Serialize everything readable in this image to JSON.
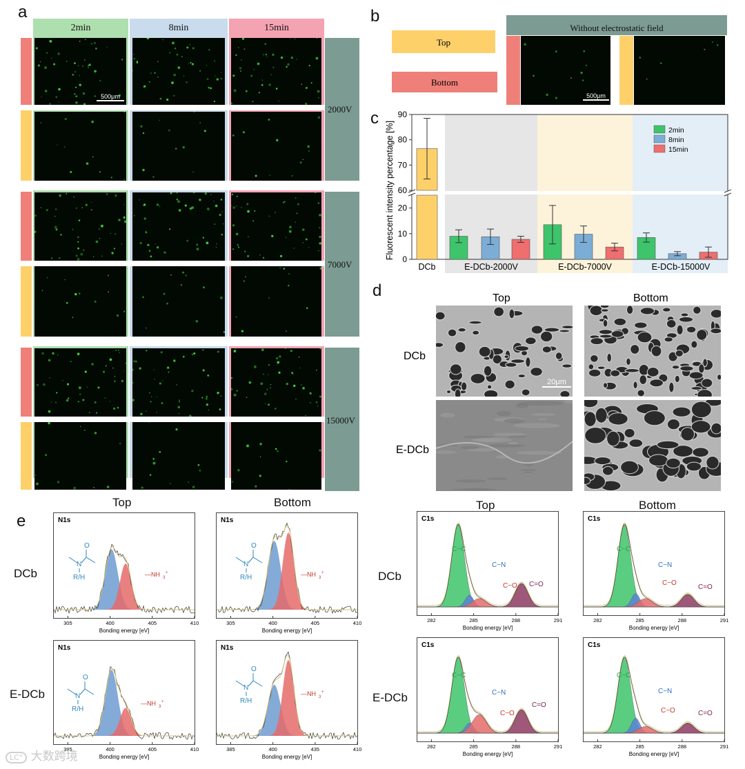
{
  "panel_labels": {
    "a": "a",
    "b": "b",
    "c": "c",
    "d": "d",
    "e": "e"
  },
  "panel_a": {
    "columns": [
      "2min",
      "8min",
      "15min"
    ],
    "voltages": [
      "2000V",
      "7000V",
      "15000V"
    ],
    "scale_bar": "500μm",
    "colors": {
      "col1": "#aedfae",
      "col2": "#c9dced",
      "col3": "#f4a3b3",
      "voltage_band": "#7c9b92",
      "top": "#fdd06a",
      "bottom": "#ee8079"
    }
  },
  "panel_b": {
    "top_label": "Top",
    "bottom_label": "Bottom",
    "header": "Without electrostatic field",
    "scale_bar": "500μm"
  },
  "chart_data": {
    "type": "bar",
    "ylabel": "Fluorescent intensity percentage [%]",
    "ylim_lower": [
      0,
      25
    ],
    "ylim_upper": [
      60,
      90
    ],
    "groups": [
      "DCb",
      "E-DCb-2000V",
      "E-DCb-7000V",
      "E-DCb-15000V"
    ],
    "legend": [
      "2min",
      "8min",
      "15min"
    ],
    "legend_position": "top-right",
    "series_colors": {
      "2min": "#3ec46b",
      "8min": "#7badd6",
      "15min": "#ef6e6e",
      "DCb": "#fdd06a"
    },
    "group_backgrounds": [
      "#ffffff",
      "#e6e6e6",
      "#fdf3da",
      "#e3eef7"
    ],
    "yticks_lower": [
      "0",
      "10",
      "20"
    ],
    "yticks_upper": [
      "60",
      "70",
      "80",
      "90"
    ],
    "bars": [
      {
        "group": "DCb",
        "series": "DCb",
        "value": 76.5,
        "err": 12
      },
      {
        "group": "E-DCb-2000V",
        "series": "2min",
        "value": 9.0,
        "err": 2.5
      },
      {
        "group": "E-DCb-2000V",
        "series": "8min",
        "value": 8.8,
        "err": 3.0
      },
      {
        "group": "E-DCb-2000V",
        "series": "15min",
        "value": 7.8,
        "err": 1.2
      },
      {
        "group": "E-DCb-7000V",
        "series": "2min",
        "value": 13.5,
        "err": 7.5
      },
      {
        "group": "E-DCb-7000V",
        "series": "8min",
        "value": 9.8,
        "err": 3.2
      },
      {
        "group": "E-DCb-7000V",
        "series": "15min",
        "value": 4.8,
        "err": 1.5
      },
      {
        "group": "E-DCb-15000V",
        "series": "2min",
        "value": 8.5,
        "err": 1.8
      },
      {
        "group": "E-DCb-15000V",
        "series": "8min",
        "value": 2.2,
        "err": 0.8
      },
      {
        "group": "E-DCb-15000V",
        "series": "15min",
        "value": 2.8,
        "err": 2.0
      }
    ]
  },
  "panel_d": {
    "col_top": "Top",
    "col_bottom": "Bottom",
    "row_dcb": "DCb",
    "row_edcb": "E-DCb",
    "scale_bar": "20μm"
  },
  "panel_e": {
    "n_top": "Top",
    "n_bottom": "Bottom",
    "c_top": "Top",
    "c_bottom": "Bottom",
    "row_dcb": "DCb",
    "row_edcb": "E-DCb",
    "n_title": "N1s",
    "c_title": "C1s",
    "xlabel": "Bonding energy [eV]",
    "n_ticks": [
      "395",
      "400",
      "405",
      "410"
    ],
    "n_ticks_alt": [
      "385",
      "400",
      "405",
      "410"
    ],
    "n_ticks_alt2": [
      "385",
      "400",
      "435",
      "410"
    ],
    "n_ticks_first": "305",
    "c_ticks": [
      "282",
      "285",
      "288",
      "291"
    ],
    "struct_rh": "R/H",
    "struct_o": "O",
    "struct_n": "N",
    "nh3": "NH",
    "nh3_sup": "+",
    "nh3_sub": "3",
    "cc": "C−C",
    "cn": "C−N",
    "co": "C−O",
    "c_eq_o": "C=O"
  },
  "watermark": "大数跨境"
}
